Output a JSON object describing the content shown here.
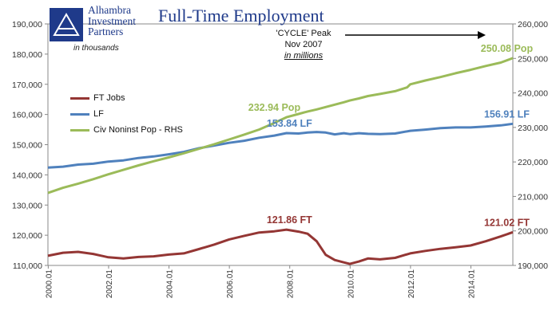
{
  "logo": {
    "line1": "Alhambra",
    "line2": "Investment",
    "line3": "Partners"
  },
  "header": {
    "title": "Full-Time Employment",
    "units_note": "in thousands"
  },
  "cycle_note": {
    "line1": "'CYCLE' Peak",
    "line2": "Nov 2007",
    "line3": "in millions"
  },
  "colors": {
    "ft": "#943634",
    "lf": "#4f81bd",
    "pop": "#9bbb59",
    "text_blue": "#1f3a8a"
  },
  "chart_data": {
    "type": "line",
    "x_ticks": [
      "2000.01",
      "2002.01",
      "2004.01",
      "2006.01",
      "2008.01",
      "2010.01",
      "2012.01",
      "2014.01"
    ],
    "x_range": [
      2000.0,
      2015.4
    ],
    "y_left": {
      "ticks": [
        "110,000",
        "120,000",
        "130,000",
        "140,000",
        "150,000",
        "160,000",
        "170,000",
        "180,000",
        "190,000"
      ],
      "range": [
        110000,
        190000
      ]
    },
    "y_right": {
      "ticks": [
        "190,000",
        "200,000",
        "210,000",
        "220,000",
        "230,000",
        "240,000",
        "250,000",
        "260,000"
      ],
      "range": [
        190000,
        260000
      ]
    },
    "legend_position": "left-middle",
    "series": [
      {
        "name": "FT Jobs",
        "axis": "left",
        "x": [
          2000.0,
          2000.5,
          2001.0,
          2001.5,
          2002.0,
          2002.5,
          2003.0,
          2003.5,
          2004.0,
          2004.5,
          2005.0,
          2005.5,
          2006.0,
          2006.5,
          2007.0,
          2007.5,
          2007.9,
          2008.3,
          2008.6,
          2008.9,
          2009.2,
          2009.5,
          2009.8,
          2010.0,
          2010.3,
          2010.6,
          2011.0,
          2011.5,
          2012.0,
          2012.5,
          2013.0,
          2013.5,
          2014.0,
          2014.5,
          2015.0,
          2015.4
        ],
        "y": [
          113200,
          114200,
          114500,
          113800,
          112700,
          112300,
          112800,
          113000,
          113600,
          114000,
          115400,
          116900,
          118600,
          119800,
          120900,
          121300,
          121860,
          121200,
          120500,
          118000,
          113500,
          111800,
          111000,
          110500,
          111300,
          112300,
          112000,
          112500,
          114000,
          114800,
          115500,
          116000,
          116600,
          118000,
          119600,
          121020
        ]
      },
      {
        "name": "LF",
        "axis": "left",
        "x": [
          2000.0,
          2000.5,
          2001.0,
          2001.5,
          2002.0,
          2002.5,
          2003.0,
          2003.5,
          2004.0,
          2004.5,
          2005.0,
          2005.5,
          2006.0,
          2006.5,
          2007.0,
          2007.5,
          2007.9,
          2008.3,
          2008.6,
          2008.9,
          2009.2,
          2009.5,
          2009.8,
          2010.0,
          2010.3,
          2010.6,
          2011.0,
          2011.5,
          2012.0,
          2012.5,
          2013.0,
          2013.5,
          2014.0,
          2014.5,
          2015.0,
          2015.4
        ],
        "y": [
          142400,
          142700,
          143400,
          143700,
          144400,
          144800,
          145600,
          146100,
          146800,
          147600,
          148800,
          149700,
          150600,
          151300,
          152300,
          153000,
          153840,
          153700,
          154000,
          154200,
          154000,
          153400,
          153800,
          153500,
          153800,
          153600,
          153500,
          153700,
          154600,
          155000,
          155500,
          155700,
          155700,
          156000,
          156400,
          156910
        ]
      },
      {
        "name": "Civ Noninst Pop - RHS",
        "axis": "right",
        "x": [
          2000.0,
          2000.5,
          2001.0,
          2001.5,
          2002.0,
          2002.5,
          2003.0,
          2003.5,
          2004.0,
          2004.5,
          2005.0,
          2005.5,
          2006.0,
          2006.5,
          2007.0,
          2007.5,
          2007.9,
          2008.3,
          2008.6,
          2008.9,
          2009.2,
          2009.5,
          2009.8,
          2010.0,
          2010.3,
          2010.6,
          2011.0,
          2011.5,
          2011.9,
          2012.0,
          2012.5,
          2013.0,
          2013.5,
          2014.0,
          2014.5,
          2015.0,
          2015.4
        ],
        "y": [
          211000,
          212500,
          213700,
          215000,
          216400,
          217700,
          219000,
          220200,
          221300,
          222500,
          223800,
          225100,
          226500,
          227900,
          229400,
          231300,
          232940,
          233900,
          234600,
          235200,
          235900,
          236600,
          237300,
          237800,
          238400,
          239100,
          239700,
          240500,
          241600,
          242500,
          243600,
          244600,
          245700,
          246700,
          247800,
          248800,
          250080
        ]
      }
    ],
    "annotations": [
      {
        "text": "121.86 FT",
        "series": "FT Jobs",
        "x": 2008.0,
        "y": 121860
      },
      {
        "text": "121.02 FT",
        "series": "FT Jobs",
        "x": 2015.2,
        "y": 121020
      },
      {
        "text": "153.84 LF",
        "series": "LF",
        "x": 2008.0,
        "y": 153840
      },
      {
        "text": "156.91 LF",
        "series": "LF",
        "x": 2015.2,
        "y": 156910
      },
      {
        "text": "232.94 Pop",
        "series": "Civ Noninst Pop - RHS",
        "x": 2007.5,
        "y": 232940
      },
      {
        "text": "250.08 Pop",
        "series": "Civ Noninst Pop - RHS",
        "x": 2015.2,
        "y": 250080
      }
    ]
  }
}
